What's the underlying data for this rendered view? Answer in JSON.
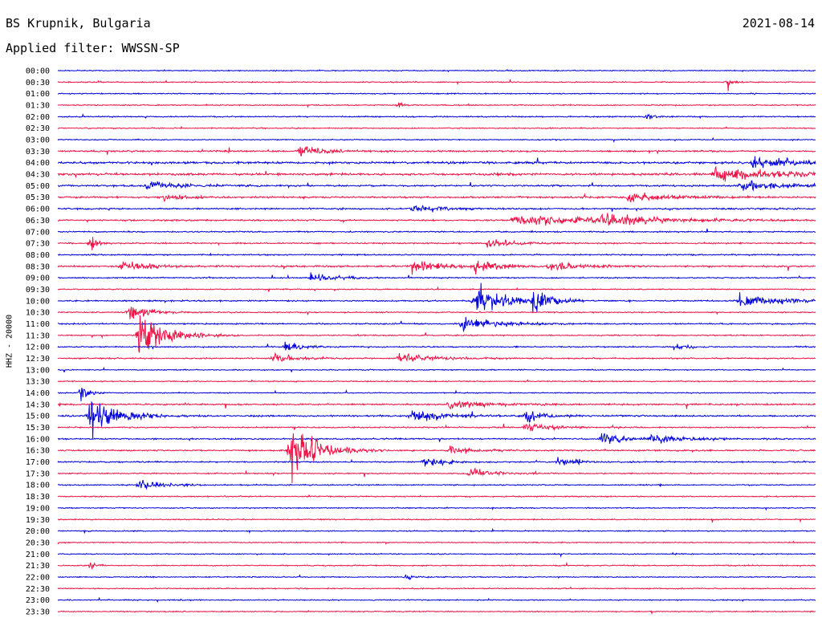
{
  "header": {
    "station": "BS Krupnik, Bulgaria",
    "date": "2021-08-14",
    "filter": "Applied filter: WWSSN-SP"
  },
  "colors": {
    "even_row": "#0000dd",
    "odd_row": "#ee1144"
  },
  "chart_data": {
    "type": "line",
    "title": "BS Krupnik, Bulgaria",
    "ylabel": "HHZ - 20000",
    "row_labels": [
      "00:00",
      "00:30",
      "01:00",
      "01:30",
      "02:00",
      "02:30",
      "03:00",
      "03:30",
      "04:00",
      "04:30",
      "05:00",
      "05:30",
      "06:00",
      "06:30",
      "07:00",
      "07:30",
      "08:00",
      "08:30",
      "09:00",
      "09:30",
      "10:00",
      "10:30",
      "11:00",
      "11:30",
      "12:00",
      "12:30",
      "13:00",
      "13:30",
      "14:00",
      "14:30",
      "15:00",
      "15:30",
      "16:00",
      "16:30",
      "17:00",
      "17:30",
      "18:00",
      "18:30",
      "19:00",
      "19:30",
      "20:00",
      "20:30",
      "21:00",
      "21:30",
      "22:00",
      "22:30",
      "23:00",
      "23:30"
    ],
    "minutes_per_row": 30,
    "row_noise": [
      1,
      1,
      1,
      1,
      1.2,
      1,
      1,
      1.5,
      2,
      2.2,
      1.6,
      1.6,
      1.5,
      1.4,
      1.2,
      1.3,
      1.2,
      1.6,
      1.2,
      1,
      1.3,
      1.1,
      1.3,
      1.1,
      1.2,
      1.3,
      1,
      1,
      1,
      1.5,
      1.6,
      1.2,
      1.3,
      1.4,
      1.3,
      1.1,
      1.1,
      1,
      1,
      1,
      1,
      1,
      1,
      1,
      1,
      1,
      1,
      1
    ],
    "events": [
      {
        "row": 1,
        "minute": 26.5,
        "duration": 0.3,
        "amplitude": 6
      },
      {
        "row": 3,
        "minute": 13.5,
        "duration": 0.3,
        "amplitude": 5
      },
      {
        "row": 4,
        "minute": 23.3,
        "duration": 0.4,
        "amplitude": 5
      },
      {
        "row": 7,
        "minute": 9.5,
        "duration": 1.5,
        "amplitude": 7
      },
      {
        "row": 8,
        "minute": 27.5,
        "duration": 3,
        "amplitude": 6
      },
      {
        "row": 9,
        "minute": 26,
        "duration": 3.5,
        "amplitude": 7
      },
      {
        "row": 10,
        "minute": 3.5,
        "duration": 2,
        "amplitude": 4
      },
      {
        "row": 10,
        "minute": 27,
        "duration": 3,
        "amplitude": 5
      },
      {
        "row": 11,
        "minute": 4.2,
        "duration": 1,
        "amplitude": 7
      },
      {
        "row": 11,
        "minute": 22.5,
        "duration": 2.5,
        "amplitude": 6
      },
      {
        "row": 12,
        "minute": 14,
        "duration": 1.5,
        "amplitude": 5
      },
      {
        "row": 13,
        "minute": 18,
        "duration": 5,
        "amplitude": 7
      },
      {
        "row": 13,
        "minute": 21.5,
        "duration": 3,
        "amplitude": 6
      },
      {
        "row": 15,
        "minute": 1.3,
        "duration": 0.4,
        "amplitude": 9
      },
      {
        "row": 15,
        "minute": 17,
        "duration": 1.5,
        "amplitude": 6
      },
      {
        "row": 17,
        "minute": 2.5,
        "duration": 1.5,
        "amplitude": 6
      },
      {
        "row": 17,
        "minute": 14,
        "duration": 1.5,
        "amplitude": 9
      },
      {
        "row": 17,
        "minute": 16.5,
        "duration": 1.5,
        "amplitude": 7
      },
      {
        "row": 17,
        "minute": 19.5,
        "duration": 1.5,
        "amplitude": 7
      },
      {
        "row": 18,
        "minute": 10,
        "duration": 1.2,
        "amplitude": 6
      },
      {
        "row": 20,
        "minute": 16.5,
        "duration": 1.6,
        "amplitude": 22
      },
      {
        "row": 20,
        "minute": 18.8,
        "duration": 1,
        "amplitude": 14
      },
      {
        "row": 20,
        "minute": 27,
        "duration": 3,
        "amplitude": 6
      },
      {
        "row": 21,
        "minute": 2.8,
        "duration": 1.2,
        "amplitude": 10
      },
      {
        "row": 22,
        "minute": 16,
        "duration": 2,
        "amplitude": 8
      },
      {
        "row": 23,
        "minute": 3.2,
        "duration": 1.6,
        "amplitude": 28
      },
      {
        "row": 24,
        "minute": 9,
        "duration": 1,
        "amplitude": 6
      },
      {
        "row": 24,
        "minute": 24.5,
        "duration": 0.6,
        "amplitude": 5
      },
      {
        "row": 25,
        "minute": 8.5,
        "duration": 1.5,
        "amplitude": 5
      },
      {
        "row": 25,
        "minute": 13.5,
        "duration": 2,
        "amplitude": 5
      },
      {
        "row": 28,
        "minute": 0.9,
        "duration": 0.4,
        "amplitude": 16
      },
      {
        "row": 29,
        "minute": 15.5,
        "duration": 2,
        "amplitude": 5
      },
      {
        "row": 30,
        "minute": 1.2,
        "duration": 1.6,
        "amplitude": 22
      },
      {
        "row": 30,
        "minute": 14,
        "duration": 2,
        "amplitude": 6
      },
      {
        "row": 30,
        "minute": 18.5,
        "duration": 1,
        "amplitude": 7
      },
      {
        "row": 31,
        "minute": 18.5,
        "duration": 1.2,
        "amplitude": 7
      },
      {
        "row": 32,
        "minute": 21.5,
        "duration": 1.2,
        "amplitude": 9
      },
      {
        "row": 32,
        "minute": 23.5,
        "duration": 2,
        "amplitude": 6
      },
      {
        "row": 33,
        "minute": 9.2,
        "duration": 1.6,
        "amplitude": 30
      },
      {
        "row": 33,
        "minute": 15.5,
        "duration": 1,
        "amplitude": 6
      },
      {
        "row": 34,
        "minute": 14.5,
        "duration": 1.2,
        "amplitude": 6
      },
      {
        "row": 34,
        "minute": 19.8,
        "duration": 1.2,
        "amplitude": 6
      },
      {
        "row": 35,
        "minute": 16.3,
        "duration": 1.4,
        "amplitude": 6
      },
      {
        "row": 36,
        "minute": 3.2,
        "duration": 1.4,
        "amplitude": 6
      },
      {
        "row": 43,
        "minute": 1.3,
        "duration": 0.3,
        "amplitude": 10
      },
      {
        "row": 44,
        "minute": 13.8,
        "duration": 0.5,
        "amplitude": 4
      }
    ]
  }
}
